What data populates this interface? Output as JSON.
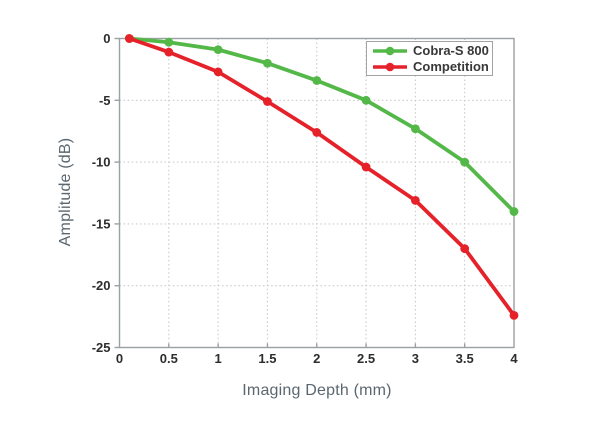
{
  "chart_data": {
    "type": "line",
    "title": "",
    "xlabel": "Imaging Depth (mm)",
    "ylabel": "Amplitude (dB)",
    "xlim": [
      0,
      4
    ],
    "ylim": [
      -25,
      0
    ],
    "x_tick_labels": [
      "0",
      "0.5",
      "1",
      "1.5",
      "2",
      "2.5",
      "3",
      "3.5",
      "4"
    ],
    "x_tick_values": [
      0,
      0.5,
      1,
      1.5,
      2,
      2.5,
      3,
      3.5,
      4
    ],
    "y_tick_labels": [
      "0",
      "-5",
      "-10",
      "-15",
      "-20",
      "-25"
    ],
    "y_tick_values": [
      0,
      -5,
      -10,
      -15,
      -20,
      -25
    ],
    "grid": true,
    "grid_style": "dotted",
    "legend_position": "top-right",
    "x": [
      0.1,
      0.5,
      1.0,
      1.5,
      2.0,
      2.5,
      3.0,
      3.5,
      4.0
    ],
    "series": [
      {
        "name": "Cobra-S 800",
        "color": "#53b848",
        "values": [
          0,
          -0.3,
          -0.9,
          -2.0,
          -3.4,
          -5.0,
          -7.3,
          -10.0,
          -14.0
        ]
      },
      {
        "name": "Competition",
        "color": "#e5212a",
        "values": [
          0,
          -1.1,
          -2.7,
          -5.1,
          -7.6,
          -10.4,
          -13.1,
          -17.0,
          -22.4
        ]
      }
    ]
  },
  "colors": {
    "background": "#ffffff",
    "grid": "#c9c9c9",
    "spine": "#9aa0a3",
    "tick_text": "#2d2d2d",
    "axis_label_text": "#5b6770",
    "legend_border": "#a3a3a3",
    "legend_text": "#383838"
  }
}
